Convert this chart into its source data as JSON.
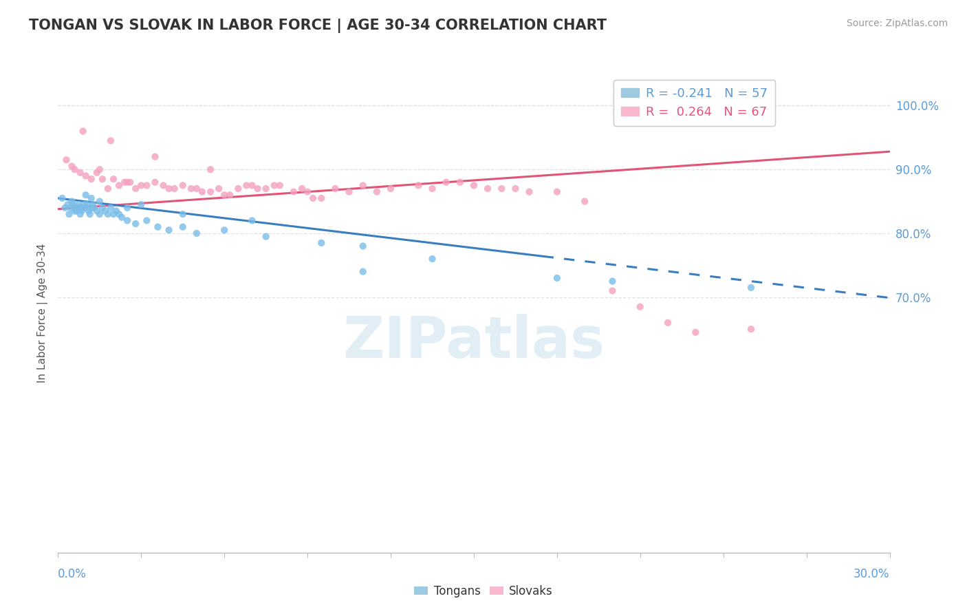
{
  "title": "TONGAN VS SLOVAK IN LABOR FORCE | AGE 30-34 CORRELATION CHART",
  "source_text": "Source: ZipAtlas.com",
  "ylabel": "In Labor Force | Age 30-34",
  "yaxis_ticks": [
    70.0,
    80.0,
    90.0,
    100.0
  ],
  "xmin": 0.0,
  "xmax": 30.0,
  "ymin": 30.0,
  "ymax": 105.0,
  "legend_r_entries": [
    {
      "label": "R = -0.241   N = 57",
      "color": "#5b9bd5"
    },
    {
      "label": "R =  0.264   N = 67",
      "color": "#e8537a"
    }
  ],
  "tongan_scatter": {
    "x": [
      0.15,
      0.25,
      0.35,
      0.45,
      0.5,
      0.55,
      0.6,
      0.65,
      0.7,
      0.75,
      0.8,
      0.85,
      0.9,
      0.95,
      1.0,
      1.05,
      1.1,
      1.15,
      1.2,
      1.25,
      1.3,
      1.4,
      1.5,
      1.6,
      1.7,
      1.8,
      1.9,
      2.0,
      2.1,
      2.2,
      2.3,
      2.5,
      2.8,
      3.2,
      3.6,
      4.0,
      4.5,
      5.0,
      6.0,
      7.5,
      9.5,
      11.0,
      13.5,
      1.0,
      1.2,
      1.5,
      0.4,
      0.6,
      0.8,
      2.5,
      3.0,
      4.5,
      7.0,
      11.0,
      18.0,
      20.0,
      25.0
    ],
    "y": [
      85.5,
      84.0,
      84.5,
      84.0,
      85.0,
      84.5,
      84.0,
      83.5,
      84.0,
      84.5,
      84.0,
      83.5,
      84.0,
      84.5,
      84.0,
      84.5,
      83.5,
      83.0,
      84.0,
      84.5,
      84.0,
      83.5,
      83.0,
      84.0,
      83.5,
      83.0,
      84.0,
      83.0,
      83.5,
      83.0,
      82.5,
      82.0,
      81.5,
      82.0,
      81.0,
      80.5,
      81.0,
      80.0,
      80.5,
      79.5,
      78.5,
      78.0,
      76.0,
      86.0,
      85.5,
      85.0,
      83.0,
      83.5,
      83.0,
      84.0,
      84.5,
      83.0,
      82.0,
      74.0,
      73.0,
      72.5,
      71.5
    ],
    "color": "#7abde8",
    "alpha": 0.8,
    "size": 55
  },
  "slovak_scatter": {
    "x": [
      0.5,
      1.0,
      1.5,
      2.0,
      2.5,
      3.0,
      3.5,
      4.0,
      4.5,
      5.0,
      5.5,
      6.0,
      6.5,
      7.0,
      7.5,
      8.0,
      9.0,
      10.0,
      11.0,
      12.0,
      13.0,
      14.0,
      15.0,
      16.0,
      18.0,
      20.0,
      22.0,
      25.0,
      1.2,
      1.8,
      2.2,
      2.8,
      3.2,
      4.2,
      5.2,
      6.2,
      7.2,
      8.5,
      0.3,
      0.8,
      1.6,
      2.6,
      9.5,
      14.5,
      16.5,
      19.0,
      0.6,
      1.4,
      2.4,
      3.8,
      5.8,
      7.8,
      10.5,
      13.5,
      17.0,
      21.0,
      23.0,
      4.8,
      6.8,
      8.8,
      11.5,
      15.5,
      0.9,
      1.9,
      3.5,
      5.5,
      9.2
    ],
    "y": [
      90.5,
      89.0,
      90.0,
      88.5,
      88.0,
      87.5,
      88.0,
      87.0,
      87.5,
      87.0,
      86.5,
      86.0,
      87.0,
      87.5,
      87.0,
      87.5,
      86.5,
      87.0,
      87.5,
      87.0,
      87.5,
      88.0,
      87.5,
      87.0,
      86.5,
      71.0,
      66.0,
      65.0,
      88.5,
      87.0,
      87.5,
      87.0,
      87.5,
      87.0,
      86.5,
      86.0,
      87.0,
      86.5,
      91.5,
      89.5,
      88.5,
      88.0,
      85.5,
      88.0,
      87.0,
      85.0,
      90.0,
      89.5,
      88.0,
      87.5,
      87.0,
      87.5,
      86.5,
      87.0,
      86.5,
      68.5,
      64.5,
      87.0,
      87.5,
      87.0,
      86.5,
      87.0,
      96.0,
      94.5,
      92.0,
      90.0,
      85.5
    ],
    "color": "#f4a0c0",
    "alpha": 0.8,
    "size": 55
  },
  "tongan_line": {
    "x_solid_start": 0.0,
    "x_solid_end": 17.5,
    "x_dash_start": 17.5,
    "x_dash_end": 30.0,
    "slope": -0.52,
    "intercept": 85.5,
    "color": "#3a7ebf",
    "linewidth": 2.2
  },
  "slovak_line": {
    "x_start": 0.0,
    "x_end": 30.0,
    "slope": 0.3,
    "intercept": 83.8,
    "color": "#e05575",
    "linewidth": 2.2
  },
  "watermark_text": "ZIPatlas",
  "watermark_color": "#d0e4f0",
  "background_color": "#ffffff",
  "title_color": "#333333",
  "axis_color": "#5b9bd5",
  "grid_color": "#e0e0e0",
  "title_fontsize": 15,
  "source_fontsize": 10,
  "axis_fontsize": 12
}
